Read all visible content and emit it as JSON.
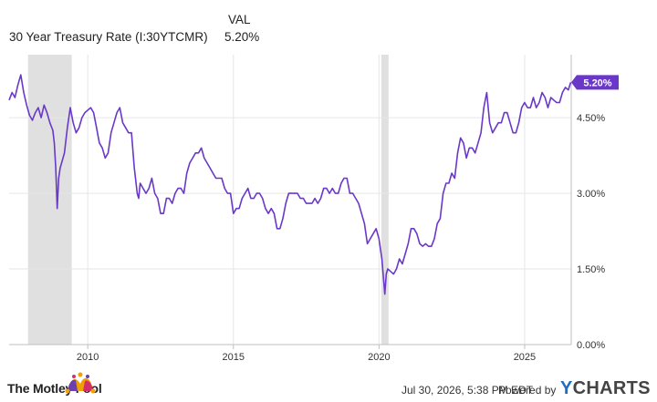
{
  "header": {
    "col_label": "VAL",
    "series_name": "30 Year Treasury Rate (I:30YTCMR)",
    "series_value": "5.20%"
  },
  "footer": {
    "brand": "The Motley Fool",
    "timestamp": "Jul 30, 2026, 5:38 PM EDT",
    "powered_by": "Powered by",
    "ycharts_prefix": "Y",
    "ycharts_rest": "CHARTS"
  },
  "colors": {
    "line": "#6a38c8",
    "recession": "#e0e0e0",
    "grid": "#e6e6e6",
    "text": "#333333",
    "badge": "#6a38c8"
  },
  "chart_data": {
    "type": "line",
    "title": "",
    "xlabel": "",
    "ylabel": "",
    "xlim": [
      2007.3,
      2026.6
    ],
    "ylim": [
      0,
      5.75
    ],
    "grid": true,
    "y_ticks": [
      0,
      1.5,
      3.0,
      4.5
    ],
    "y_tick_labels": [
      "0.00%",
      "1.50%",
      "3.00%",
      "4.50%"
    ],
    "x_ticks": [
      2010,
      2015,
      2020,
      2025
    ],
    "x_tick_labels": [
      "2010",
      "2015",
      "2020",
      "2025"
    ],
    "recessions": [
      [
        2007.95,
        2009.45
      ],
      [
        2020.08,
        2020.33
      ]
    ],
    "last_value_label": "5.20%",
    "series": [
      {
        "name": "30 Year Treasury Rate (I:30YTCMR)",
        "x": [
          2007.3,
          2007.4,
          2007.5,
          2007.6,
          2007.7,
          2007.8,
          2007.9,
          2008.0,
          2008.1,
          2008.2,
          2008.3,
          2008.4,
          2008.5,
          2008.6,
          2008.7,
          2008.8,
          2008.85,
          2008.9,
          2008.95,
          2009.0,
          2009.05,
          2009.1,
          2009.2,
          2009.3,
          2009.4,
          2009.5,
          2009.6,
          2009.7,
          2009.8,
          2009.9,
          2010.0,
          2010.1,
          2010.2,
          2010.3,
          2010.4,
          2010.5,
          2010.6,
          2010.7,
          2010.8,
          2010.9,
          2011.0,
          2011.1,
          2011.2,
          2011.3,
          2011.4,
          2011.5,
          2011.6,
          2011.7,
          2011.75,
          2011.8,
          2011.9,
          2012.0,
          2012.1,
          2012.2,
          2012.3,
          2012.4,
          2012.5,
          2012.6,
          2012.7,
          2012.8,
          2012.9,
          2013.0,
          2013.1,
          2013.2,
          2013.3,
          2013.4,
          2013.5,
          2013.6,
          2013.7,
          2013.8,
          2013.9,
          2014.0,
          2014.1,
          2014.2,
          2014.3,
          2014.4,
          2014.5,
          2014.6,
          2014.7,
          2014.8,
          2014.9,
          2015.0,
          2015.1,
          2015.2,
          2015.3,
          2015.4,
          2015.5,
          2015.6,
          2015.7,
          2015.8,
          2015.9,
          2016.0,
          2016.1,
          2016.2,
          2016.3,
          2016.4,
          2016.5,
          2016.6,
          2016.7,
          2016.8,
          2016.9,
          2017.0,
          2017.1,
          2017.2,
          2017.3,
          2017.4,
          2017.5,
          2017.6,
          2017.7,
          2017.8,
          2017.9,
          2018.0,
          2018.1,
          2018.2,
          2018.3,
          2018.4,
          2018.5,
          2018.6,
          2018.7,
          2018.8,
          2018.9,
          2019.0,
          2019.1,
          2019.2,
          2019.3,
          2019.4,
          2019.5,
          2019.6,
          2019.7,
          2019.8,
          2019.9,
          2020.0,
          2020.1,
          2020.15,
          2020.2,
          2020.25,
          2020.3,
          2020.4,
          2020.5,
          2020.6,
          2020.7,
          2020.8,
          2020.9,
          2021.0,
          2021.1,
          2021.2,
          2021.3,
          2021.4,
          2021.5,
          2021.6,
          2021.7,
          2021.8,
          2021.9,
          2022.0,
          2022.1,
          2022.2,
          2022.3,
          2022.4,
          2022.5,
          2022.6,
          2022.7,
          2022.8,
          2022.9,
          2023.0,
          2023.1,
          2023.2,
          2023.3,
          2023.4,
          2023.5,
          2023.6,
          2023.7,
          2023.8,
          2023.9,
          2024.0,
          2024.1,
          2024.2,
          2024.3,
          2024.4,
          2024.5,
          2024.6,
          2024.7,
          2024.8,
          2024.9,
          2025.0,
          2025.1,
          2025.2,
          2025.3,
          2025.4,
          2025.5,
          2025.6,
          2025.7,
          2025.8,
          2025.9,
          2026.0,
          2026.1,
          2026.2,
          2026.3,
          2026.4,
          2026.5,
          2026.58
        ],
        "y": [
          4.85,
          5.0,
          4.9,
          5.15,
          5.35,
          5.0,
          4.75,
          4.55,
          4.45,
          4.6,
          4.7,
          4.5,
          4.75,
          4.6,
          4.4,
          4.25,
          4.0,
          3.5,
          2.7,
          3.3,
          3.5,
          3.6,
          3.8,
          4.3,
          4.7,
          4.4,
          4.2,
          4.3,
          4.5,
          4.6,
          4.65,
          4.7,
          4.6,
          4.3,
          4.0,
          3.9,
          3.7,
          3.8,
          4.2,
          4.4,
          4.6,
          4.7,
          4.4,
          4.3,
          4.2,
          4.2,
          3.5,
          3.0,
          2.9,
          3.2,
          3.1,
          3.0,
          3.1,
          3.3,
          3.0,
          2.9,
          2.6,
          2.6,
          2.9,
          2.9,
          2.8,
          3.0,
          3.1,
          3.1,
          3.0,
          3.4,
          3.6,
          3.7,
          3.8,
          3.8,
          3.9,
          3.7,
          3.6,
          3.5,
          3.4,
          3.3,
          3.3,
          3.3,
          3.1,
          3.0,
          3.0,
          2.6,
          2.7,
          2.7,
          2.9,
          3.0,
          3.1,
          2.9,
          2.9,
          3.0,
          3.0,
          2.9,
          2.7,
          2.6,
          2.7,
          2.6,
          2.3,
          2.3,
          2.5,
          2.8,
          3.0,
          3.0,
          3.0,
          3.0,
          2.9,
          2.9,
          2.8,
          2.8,
          2.8,
          2.9,
          2.8,
          2.9,
          3.1,
          3.1,
          3.0,
          3.1,
          3.0,
          3.0,
          3.2,
          3.3,
          3.3,
          3.0,
          3.0,
          2.9,
          2.8,
          2.6,
          2.4,
          2.0,
          2.1,
          2.2,
          2.3,
          2.1,
          1.7,
          1.35,
          1.0,
          1.4,
          1.5,
          1.45,
          1.4,
          1.5,
          1.7,
          1.6,
          1.8,
          2.0,
          2.3,
          2.3,
          2.2,
          2.0,
          1.95,
          2.0,
          1.95,
          1.95,
          2.1,
          2.4,
          2.5,
          3.0,
          3.2,
          3.2,
          3.4,
          3.3,
          3.8,
          4.1,
          4.0,
          3.7,
          3.9,
          3.9,
          3.8,
          4.0,
          4.2,
          4.7,
          5.0,
          4.4,
          4.2,
          4.3,
          4.4,
          4.4,
          4.6,
          4.6,
          4.4,
          4.2,
          4.2,
          4.4,
          4.7,
          4.8,
          4.7,
          4.7,
          4.9,
          4.7,
          4.8,
          5.0,
          4.9,
          4.7,
          4.9,
          4.85,
          4.8,
          4.8,
          5.0,
          5.1,
          5.05,
          5.2
        ]
      }
    ]
  }
}
